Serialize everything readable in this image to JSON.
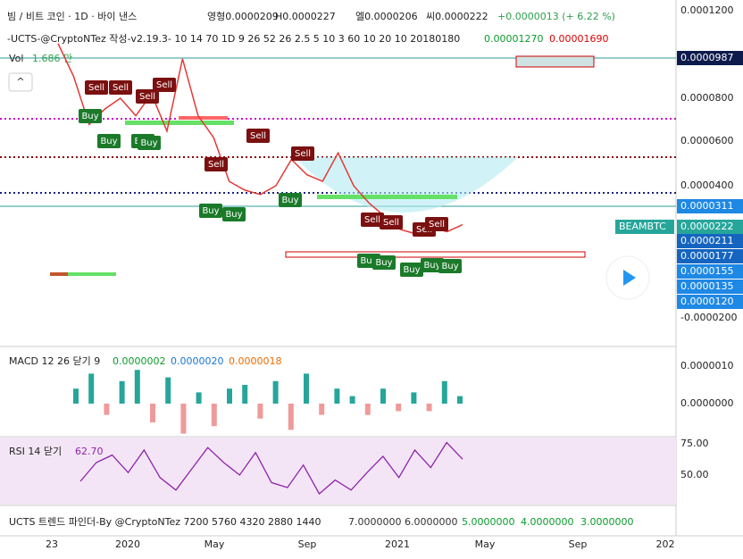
{
  "header": {
    "symbol": "빔 / 비트 코인 · 1D · 바이 낸스",
    "open": "영형0.0000209",
    "high": "H0.0000227",
    "low": "엘0.0000206",
    "close": "씨0.0000222",
    "change": "+0.0000013 (+ 6.22 %)"
  },
  "indicator": {
    "label": "-UCTS-@CryptoNTez 작성-v2.19.3- 10 14 70 1D 9 26 52 26 2.5 5 10 3 60 10 20 10 20180180",
    "v1": "0.00001270",
    "v2": "0.00001690"
  },
  "volume": {
    "label": "Vol",
    "value": "1.686 만"
  },
  "price_axis": {
    "ticks": [
      "0.0001200",
      "0.0000800",
      "0.0000600",
      "0.0000400",
      "-0.0000200"
    ],
    "tags": [
      "0.0000987",
      "0.0000311",
      "0.0000222",
      "0.0000211",
      "0.0000177",
      "0.0000155",
      "0.0000135",
      "0.0000120"
    ],
    "symbol_tag": "BEAMBTC"
  },
  "price": {
    "values": [
      0.000105,
      9e-05,
      6.8e-05,
      7.5e-05,
      8e-05,
      7.2e-05,
      8.2e-05,
      6.5e-05,
      9.8e-05,
      7.2e-05,
      6.2e-05,
      4.2e-05,
      3.8e-05,
      3.6e-05,
      4e-05,
      5.2e-05,
      4.5e-05,
      4.2e-05,
      5.5e-05,
      4e-05,
      3.2e-05,
      2.6e-05,
      2e-05,
      1.8e-05,
      2.1e-05,
      1.9e-05,
      2.22e-05
    ]
  },
  "signals": [
    "Sell",
    "Sell",
    "Sell",
    "Sell",
    "Sell",
    "Sell",
    "Sell",
    "Buy",
    "Buy",
    "Buy",
    "Buy",
    "Buy",
    "Buy",
    "Buy",
    "Buy",
    "Buy",
    "Buy",
    "Buy",
    "Buy",
    "Sell",
    "Sell",
    "Sell",
    "Sell"
  ],
  "macd": {
    "label": "MACD 12 26 닫기 9",
    "v1": "0.0000002",
    "v2": "0.0000020",
    "v3": "0.0000018",
    "ticks": [
      "0.0000010",
      "0.0000000"
    ],
    "hist": [
      4e-07,
      8e-07,
      -3e-07,
      6e-07,
      9e-07,
      -5e-07,
      7e-07,
      -8e-07,
      3e-07,
      -6e-07,
      4e-07,
      5e-07,
      -4e-07,
      6e-07,
      -7e-07,
      8e-07,
      -3e-07,
      4e-07,
      2e-07,
      -3e-07,
      4e-07,
      -2e-07,
      3e-07,
      -2e-07,
      6e-07,
      2e-07
    ]
  },
  "rsi": {
    "label": "RSI 14 닫기",
    "value": "62.70",
    "ticks": [
      "75.00",
      "50.00"
    ],
    "values": [
      45,
      60,
      66,
      52,
      70,
      48,
      38,
      55,
      72,
      60,
      50,
      68,
      44,
      40,
      58,
      35,
      46,
      38,
      52,
      65,
      48,
      70,
      56,
      76,
      62.7
    ]
  },
  "ucts": {
    "label": "UCTS 트렌드 파인더-By @CryptoNTez 7200 5760 4320 2880 1440",
    "levels": [
      "7.0000000",
      "6.0000000",
      "5.0000000",
      "4.0000000",
      "3.0000000"
    ]
  },
  "time_axis": [
    "23",
    "2020",
    "May",
    "Sep",
    "2021",
    "May",
    "Sep",
    "202"
  ]
}
